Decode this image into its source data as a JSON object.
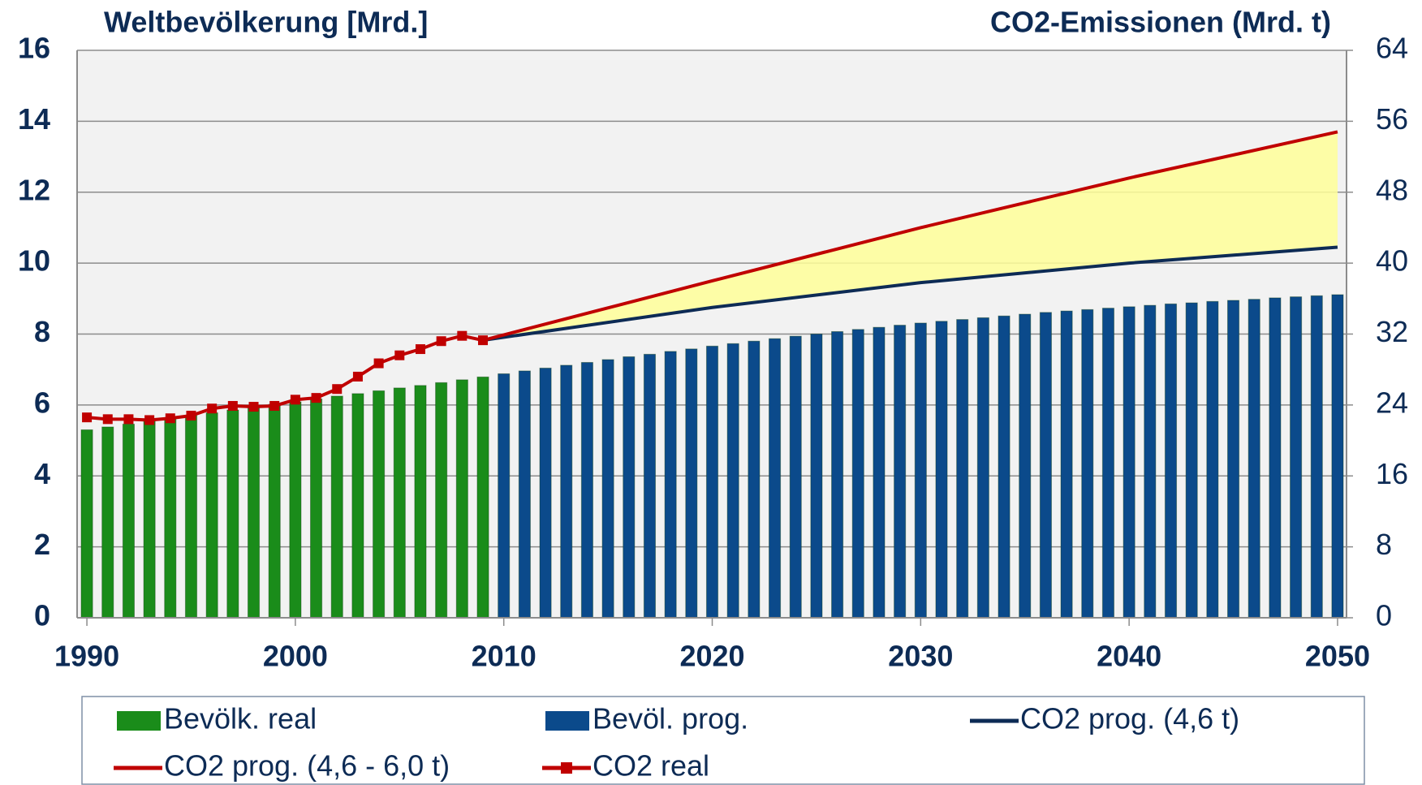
{
  "chart_data": {
    "type": "bar",
    "title_left": "Weltbevölkerung [Mrd.]",
    "title_right": "CO2-Emissionen (Mrd. t)",
    "xlim": [
      1989.53,
      2050.43
    ],
    "xticks": [
      1990,
      2000,
      2010,
      2020,
      2030,
      2040,
      2050
    ],
    "ylim": [
      0,
      16
    ],
    "yticks": [
      0,
      2,
      4,
      6,
      8,
      10,
      12,
      14,
      16
    ],
    "y2lim": [
      0,
      64
    ],
    "y2ticks": [
      0,
      8,
      16,
      24,
      32,
      40,
      48,
      56,
      64
    ],
    "grid": true,
    "legend": "bottom",
    "area_color": "#ffff99",
    "series": [
      {
        "name": "Bevölk. real",
        "type": "bar",
        "color": "#1a8c1a",
        "x": [
          1990,
          1991,
          1992,
          1993,
          1994,
          1995,
          1996,
          1997,
          1998,
          1999,
          2000,
          2001,
          2002,
          2003,
          2004,
          2005,
          2006,
          2007,
          2008,
          2009
        ],
        "values": [
          5.3,
          5.38,
          5.46,
          5.54,
          5.62,
          5.7,
          5.78,
          5.86,
          5.94,
          6.02,
          6.09,
          6.17,
          6.25,
          6.32,
          6.4,
          6.48,
          6.55,
          6.63,
          6.71,
          6.79
        ]
      },
      {
        "name": "Bevöl. prog.",
        "type": "bar",
        "color": "#0b4a8b",
        "x": [
          2010,
          2011,
          2012,
          2013,
          2014,
          2015,
          2016,
          2017,
          2018,
          2019,
          2020,
          2021,
          2022,
          2023,
          2024,
          2025,
          2026,
          2027,
          2028,
          2029,
          2030,
          2031,
          2032,
          2033,
          2034,
          2035,
          2036,
          2037,
          2038,
          2039,
          2040,
          2041,
          2042,
          2043,
          2044,
          2045,
          2046,
          2047,
          2048,
          2049,
          2050
        ],
        "values": [
          6.88,
          6.96,
          7.04,
          7.12,
          7.2,
          7.28,
          7.36,
          7.43,
          7.51,
          7.58,
          7.66,
          7.73,
          7.8,
          7.87,
          7.94,
          8.0,
          8.07,
          8.13,
          8.19,
          8.25,
          8.31,
          8.36,
          8.41,
          8.46,
          8.51,
          8.56,
          8.61,
          8.65,
          8.69,
          8.73,
          8.77,
          8.81,
          8.85,
          8.88,
          8.92,
          8.95,
          8.98,
          9.02,
          9.05,
          9.08,
          9.11
        ]
      },
      {
        "name": "CO2 prog. (4,6 t)",
        "type": "line",
        "axis": "y2",
        "color": "#0d2b55",
        "x": [
          2009,
          2020,
          2030,
          2040,
          2050
        ],
        "values": [
          31.3,
          35,
          37.8,
          40,
          41.8
        ]
      },
      {
        "name": "CO2 prog. (4,6 - 6,0 t)",
        "type": "line",
        "axis": "y2",
        "color": "#c00000",
        "x": [
          2009,
          2020,
          2030,
          2040,
          2050
        ],
        "values": [
          31.3,
          38,
          44,
          49.6,
          54.8
        ]
      },
      {
        "name": "CO2 real",
        "type": "line",
        "axis": "y2",
        "color": "#c00000",
        "markers": true,
        "x": [
          1990,
          1991,
          1992,
          1993,
          1994,
          1995,
          1996,
          1997,
          1998,
          1999,
          2000,
          2001,
          2002,
          2003,
          2004,
          2005,
          2006,
          2007,
          2008,
          2009
        ],
        "values": [
          22.6,
          22.4,
          22.4,
          22.3,
          22.5,
          22.8,
          23.6,
          23.9,
          23.8,
          23.9,
          24.6,
          24.8,
          25.8,
          27.2,
          28.7,
          29.6,
          30.3,
          31.2,
          31.8,
          31.3
        ]
      }
    ]
  }
}
